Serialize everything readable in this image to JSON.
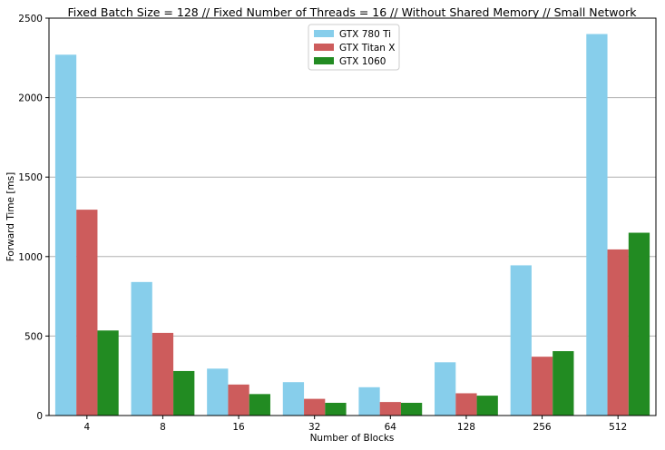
{
  "chart_data": {
    "type": "bar",
    "title": "Fixed Batch Size = 128 // Fixed Number of Threads = 16 // Without Shared Memory // Small Network",
    "xlabel": "Number of Blocks",
    "ylabel": "Forward Time [ms]",
    "categories": [
      "4",
      "8",
      "16",
      "32",
      "64",
      "128",
      "256",
      "512"
    ],
    "ylim": [
      0,
      2500
    ],
    "yticks": [
      0,
      500,
      1000,
      1500,
      2000,
      2500
    ],
    "grid": "y",
    "legend_position": "top-center",
    "series": [
      {
        "name": "GTX 780 Ti",
        "color": "#87ceeb",
        "values": [
          2270,
          840,
          295,
          210,
          178,
          335,
          945,
          2400
        ]
      },
      {
        "name": "GTX Titan X",
        "color": "#cd5c5c",
        "values": [
          1295,
          520,
          195,
          105,
          85,
          140,
          370,
          1045
        ]
      },
      {
        "name": "GTX 1060",
        "color": "#228b22",
        "values": [
          535,
          280,
          135,
          80,
          80,
          125,
          405,
          1150
        ]
      }
    ]
  }
}
